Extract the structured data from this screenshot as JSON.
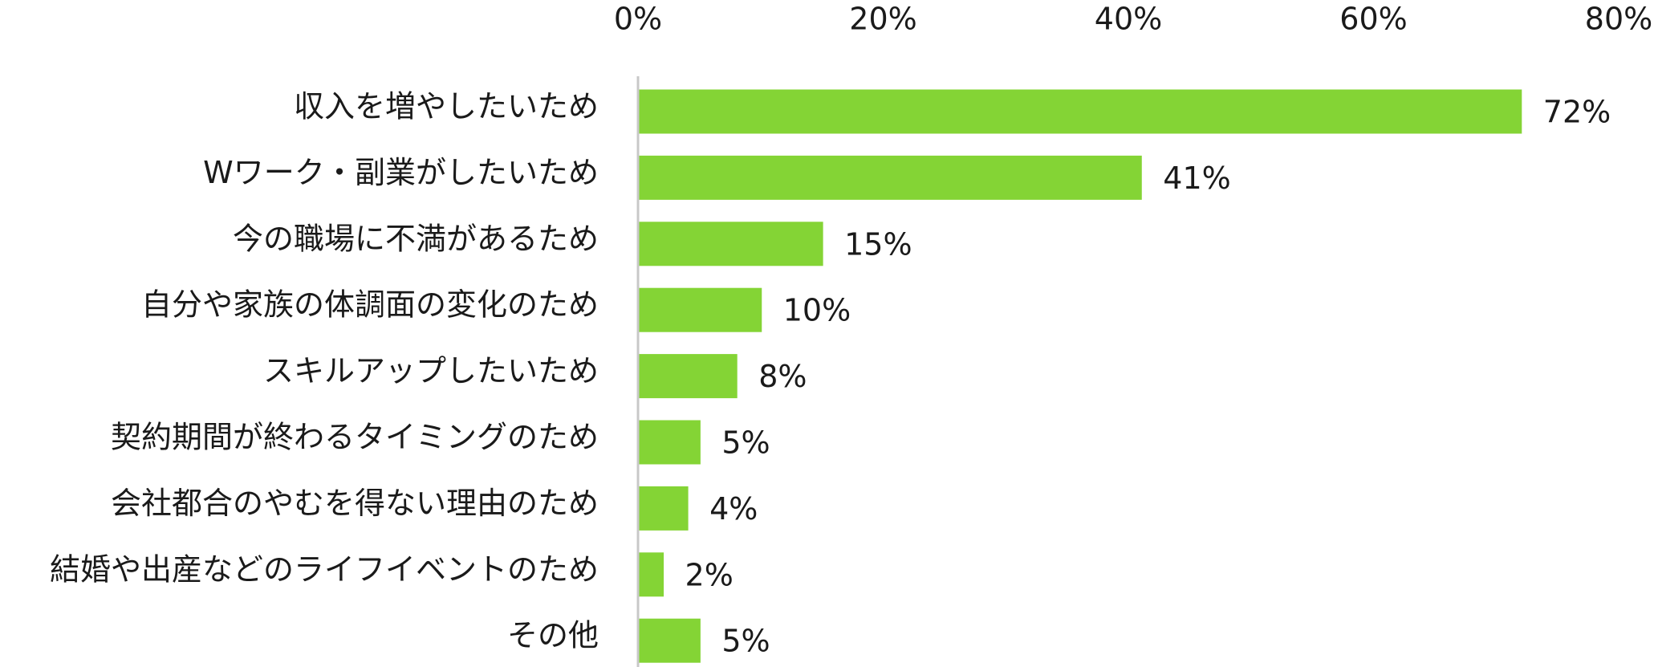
{
  "chart_data": {
    "type": "bar",
    "orientation": "horizontal",
    "categories": [
      "収入を増やしたいため",
      "Wワーク・副業がしたいため",
      "今の職場に不満があるため",
      "自分や家族の体調面の変化のため",
      "スキルアップしたいため",
      "契約期間が終わるタイミングのため",
      "会社都合のやむを得ない理由のため",
      "結婚や出産などのライフイベントのため",
      "その他"
    ],
    "values": [
      72,
      41,
      15,
      10,
      8,
      5,
      4,
      2,
      5
    ],
    "value_labels": [
      "72%",
      "41%",
      "15%",
      "10%",
      "8%",
      "5%",
      "4%",
      "2%",
      "5%"
    ],
    "color": "#84d435",
    "xlim": [
      0,
      80
    ],
    "xticks": [
      {
        "value": 0,
        "label": "0%"
      },
      {
        "value": 20,
        "label": "20%"
      },
      {
        "value": 40,
        "label": "40%"
      },
      {
        "value": 60,
        "label": "60%"
      },
      {
        "value": 80,
        "label": "80%"
      }
    ],
    "grid": false
  }
}
